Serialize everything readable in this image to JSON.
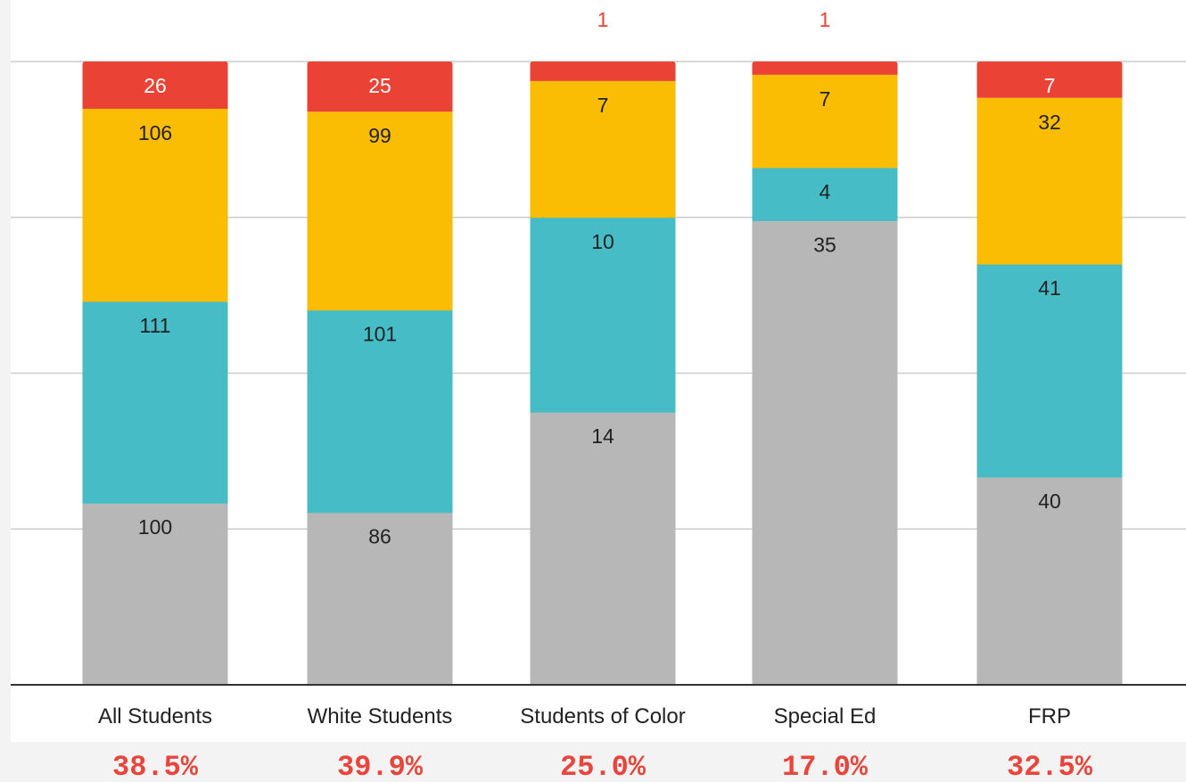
{
  "chart_data": {
    "type": "bar",
    "stacked": true,
    "categories": [
      "All Students",
      "White Students",
      "Students of Color",
      "Special Ed",
      "FRP"
    ],
    "series": [
      {
        "values": [
          100,
          86,
          14,
          35,
          40
        ],
        "color": "#b7b7b7",
        "label_color": "#222222"
      },
      {
        "values": [
          111,
          101,
          10,
          4,
          41
        ],
        "color": "#46bdc6",
        "label_color": "#222222"
      },
      {
        "values": [
          106,
          99,
          7,
          7,
          32
        ],
        "color": "#fbbc04",
        "label_color": "#222222"
      },
      {
        "values": [
          26,
          25,
          1,
          1,
          7
        ],
        "color": "#ea4335",
        "label_color": "#ea4335"
      }
    ],
    "normalized": true,
    "ylim": [
      0,
      1
    ],
    "gridlines": true,
    "legend": "none",
    "footer_values": [
      "38.5%",
      "39.9%",
      "25.0%",
      "17.0%",
      "32.5%"
    ],
    "footer_color": "#e8453c"
  }
}
